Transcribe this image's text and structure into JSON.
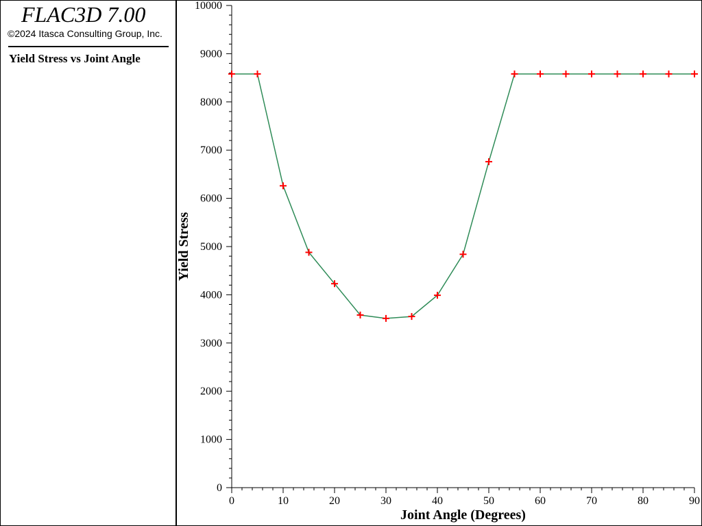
{
  "app": {
    "title": "FLAC3D 7.00",
    "copyright": "©2024 Itasca Consulting Group, Inc."
  },
  "plot": {
    "title": "Yield Stress vs Joint Angle"
  },
  "colors": {
    "line": "#2e8b57",
    "marker": "#ff0000",
    "axis": "#000000"
  },
  "chart_data": {
    "type": "line",
    "xlabel": "Joint Angle (Degrees)",
    "ylabel": "Yield Stress",
    "xlim": [
      0,
      90
    ],
    "ylim": [
      0,
      10000
    ],
    "x_ticks": [
      0,
      10,
      20,
      30,
      40,
      50,
      60,
      70,
      80,
      90
    ],
    "y_ticks": [
      0,
      1000,
      2000,
      3000,
      4000,
      5000,
      6000,
      7000,
      8000,
      9000,
      10000
    ],
    "grid": false,
    "series": [
      {
        "marker": "plus",
        "x": [
          0,
          5,
          10,
          15,
          20,
          25,
          30,
          35,
          40,
          45,
          50,
          55,
          60,
          65,
          70,
          75,
          80,
          85,
          90
        ],
        "y": [
          8580,
          8580,
          6260,
          4880,
          4230,
          3580,
          3510,
          3550,
          3990,
          4840,
          6760,
          8580,
          8580,
          8580,
          8580,
          8580,
          8580,
          8580,
          8580
        ]
      }
    ]
  }
}
